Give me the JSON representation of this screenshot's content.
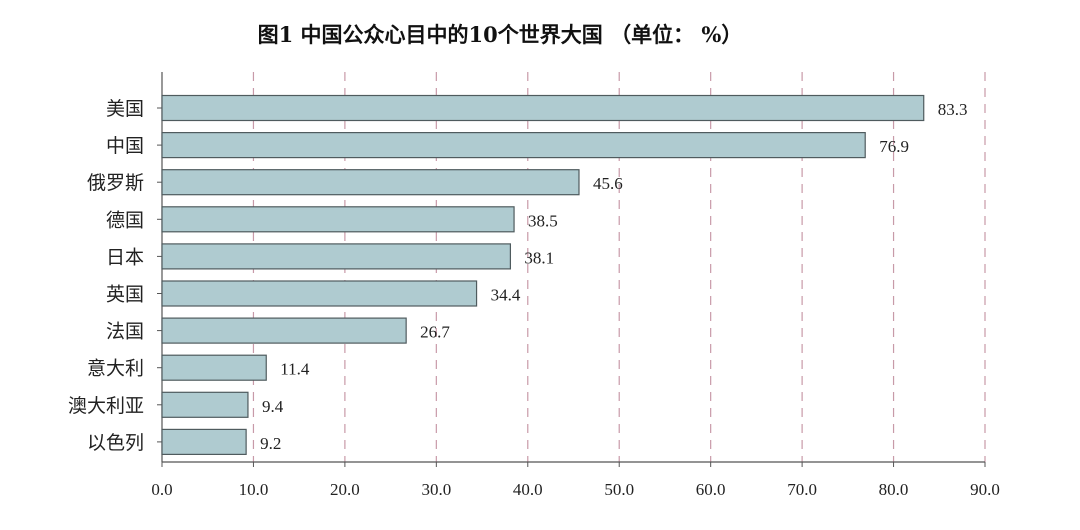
{
  "chart_data": {
    "type": "bar",
    "orientation": "horizontal",
    "title": "图1   中国公众心目中的10个世界大国 （单位： %）",
    "categories": [
      "美国",
      "中国",
      "俄罗斯",
      "德国",
      "日本",
      "英国",
      "法国",
      "意大利",
      "澳大利亚",
      "以色列"
    ],
    "values": [
      83.3,
      76.9,
      45.6,
      38.5,
      38.1,
      34.4,
      26.7,
      11.4,
      9.4,
      9.2
    ],
    "value_labels": [
      "83.3",
      "76.9",
      "45.6",
      "38.5",
      "38.1",
      "34.4",
      "26.7",
      "11.4",
      "9.4",
      "9.2"
    ],
    "xlim": [
      0,
      90
    ],
    "xticks": [
      "0.0",
      "10.0",
      "20.0",
      "30.0",
      "40.0",
      "50.0",
      "60.0",
      "70.0",
      "80.0",
      "90.0"
    ],
    "grid": "vertical dashed",
    "legend": "none",
    "colors": {
      "bar_fill": "#afcbd0",
      "bar_stroke": "#4f5b5e",
      "grid": "#c89aa8",
      "axis": "#555555"
    }
  }
}
